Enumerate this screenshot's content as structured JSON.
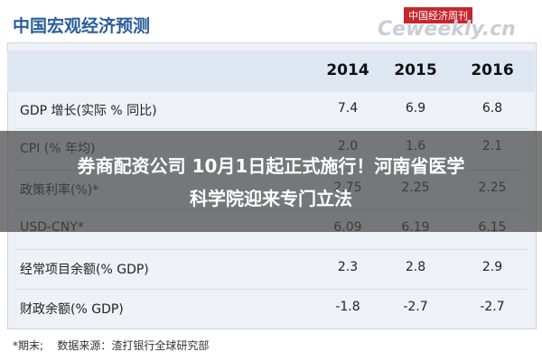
{
  "header": {
    "title": "中国宏观经济预测",
    "logo_top": "中国经济周刊",
    "logo": "Ceweekly.cn"
  },
  "table": {
    "columns": [
      "2014",
      "2015",
      "2016"
    ],
    "rows": [
      [
        "GDP 增长(实际 % 同比)",
        "7.4",
        "6.9",
        "6.8"
      ],
      [
        "CPI (% 年均)",
        "2.0",
        "1.6",
        "2.1"
      ],
      [
        "政策利率(%)*",
        "2.75",
        "2.25",
        "2.25"
      ],
      [
        "USD-CNY*",
        "6.09",
        "6.19",
        "6.15"
      ],
      [
        "经常项目余额(% GDP)",
        "2.3",
        "2.8",
        "2.9"
      ],
      [
        "财政余额(% GDP)",
        "-1.8",
        "-2.7",
        "-2.7"
      ]
    ]
  },
  "footer": {
    "note": "*期末;",
    "source": "数据来源：渣打银行全球研究部"
  },
  "banner": {
    "line1": "券商配资公司 10月1日起正式施行！河南省医学",
    "line2": "科学院迎来专门立法"
  }
}
